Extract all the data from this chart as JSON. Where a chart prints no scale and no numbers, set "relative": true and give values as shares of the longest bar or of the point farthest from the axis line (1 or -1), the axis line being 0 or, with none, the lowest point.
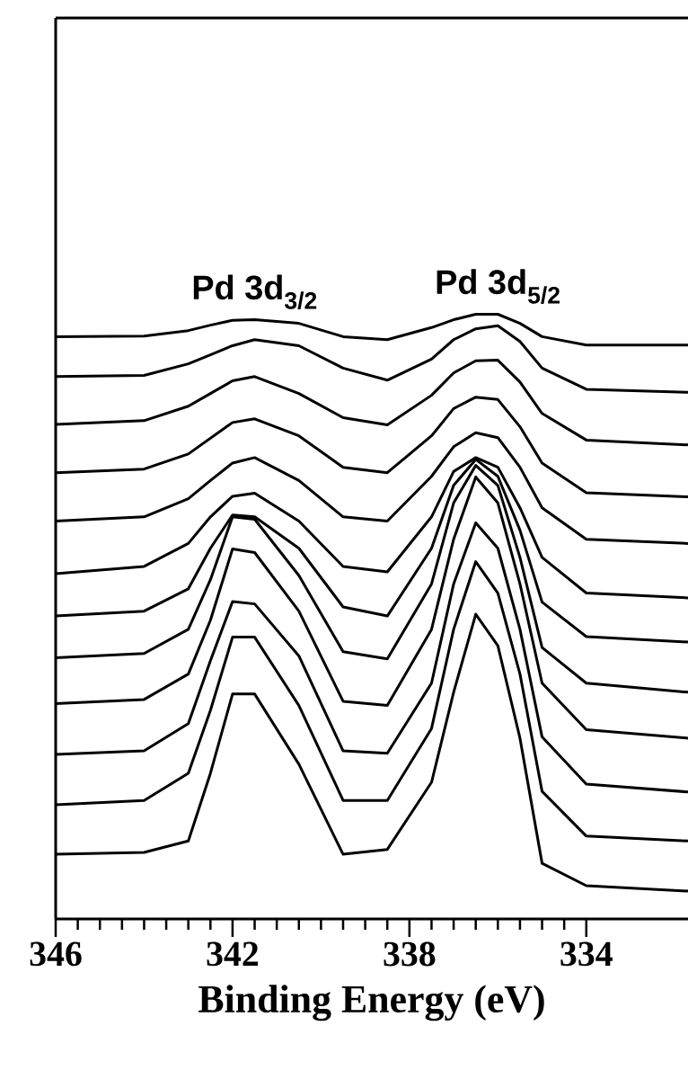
{
  "chart_data": {
    "type": "line",
    "xlabel": "Binding Energy (eV)",
    "relative": true,
    "x": [
      346,
      344,
      343,
      342.5,
      342,
      341.5,
      340.5,
      339.5,
      338.5,
      337.5,
      337,
      336.5,
      336,
      335.5,
      335,
      334,
      331.7
    ],
    "xlim": [
      346,
      331.7
    ],
    "xticks": [
      346,
      342,
      338,
      334
    ],
    "annotations": [
      {
        "text": "Pd 3d$_{3/2}$",
        "x": 341.5,
        "y": 0.991
      },
      {
        "text": "Pd 3d$_{5/2}$",
        "x": 336,
        "y": 1
      }
    ],
    "series": [
      {
        "color": "#000000",
        "values": [
          0.963,
          0.964,
          0.973,
          0.982,
          0.99,
          0.991,
          0.985,
          0.963,
          0.958,
          0.978,
          0.991,
          1,
          1,
          0.985,
          0.963,
          0.949,
          0.949
        ]
      },
      {
        "color": "#000000",
        "values": [
          0.897,
          0.899,
          0.918,
          0.933,
          0.948,
          0.958,
          0.948,
          0.911,
          0.891,
          0.926,
          0.958,
          0.976,
          0.981,
          0.955,
          0.911,
          0.876,
          0.871
        ]
      },
      {
        "color": "#000000",
        "values": [
          0.818,
          0.824,
          0.848,
          0.869,
          0.89,
          0.897,
          0.869,
          0.829,
          0.817,
          0.866,
          0.903,
          0.923,
          0.924,
          0.888,
          0.836,
          0.792,
          0.784
        ]
      },
      {
        "color": "#000000",
        "values": [
          0.738,
          0.744,
          0.769,
          0.795,
          0.821,
          0.827,
          0.799,
          0.747,
          0.738,
          0.799,
          0.844,
          0.863,
          0.859,
          0.814,
          0.754,
          0.705,
          0.698
        ]
      },
      {
        "color": "#000000",
        "values": [
          0.658,
          0.665,
          0.695,
          0.725,
          0.754,
          0.763,
          0.725,
          0.665,
          0.658,
          0.732,
          0.781,
          0.804,
          0.796,
          0.747,
          0.68,
          0.628,
          0.621
        ]
      },
      {
        "color": "#000000",
        "values": [
          0.571,
          0.583,
          0.621,
          0.665,
          0.699,
          0.704,
          0.658,
          0.583,
          0.574,
          0.665,
          0.74,
          0.763,
          0.747,
          0.68,
          0.598,
          0.539,
          0.531
        ]
      },
      {
        "color": "#000000",
        "values": [
          0.501,
          0.509,
          0.546,
          0.613,
          0.668,
          0.665,
          0.613,
          0.516,
          0.501,
          0.613,
          0.717,
          0.76,
          0.732,
          0.643,
          0.524,
          0.467,
          0.458
        ]
      },
      {
        "color": "#000000",
        "values": [
          0.432,
          0.439,
          0.479,
          0.561,
          0.665,
          0.661,
          0.568,
          0.442,
          0.43,
          0.554,
          0.688,
          0.75,
          0.717,
          0.598,
          0.449,
          0.39,
          0.375
        ]
      },
      {
        "color": "#000000",
        "values": [
          0.356,
          0.363,
          0.405,
          0.494,
          0.612,
          0.606,
          0.509,
          0.36,
          0.353,
          0.479,
          0.628,
          0.731,
          0.688,
          0.554,
          0.39,
          0.313,
          0.299
        ]
      },
      {
        "color": "#000000",
        "values": [
          0.272,
          0.278,
          0.323,
          0.427,
          0.525,
          0.521,
          0.435,
          0.278,
          0.274,
          0.39,
          0.554,
          0.655,
          0.613,
          0.479,
          0.301,
          0.223,
          0.21
        ]
      },
      {
        "color": "#000000",
        "values": [
          0.189,
          0.196,
          0.241,
          0.345,
          0.466,
          0.466,
          0.353,
          0.196,
          0.196,
          0.315,
          0.479,
          0.591,
          0.539,
          0.405,
          0.211,
          0.137,
          0.129
        ]
      },
      {
        "color": "#000000",
        "values": [
          0.107,
          0.11,
          0.129,
          0.241,
          0.372,
          0.372,
          0.256,
          0.107,
          0.115,
          0.226,
          0.375,
          0.504,
          0.452,
          0.299,
          0.092,
          0.055,
          0.046
        ]
      }
    ]
  }
}
